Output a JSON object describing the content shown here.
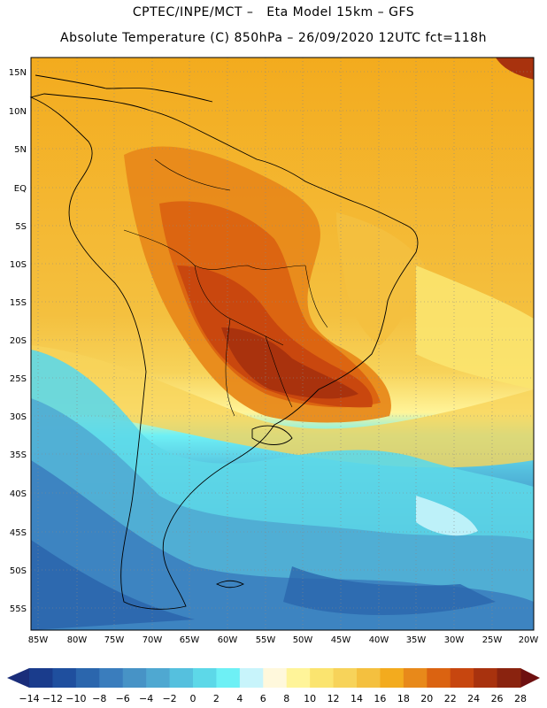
{
  "header": {
    "line1": "CPTEC/INPE/MCT –   Eta Model 15km – GFS",
    "line2": "Absolute Temperature (C) 850hPa – 26/09/2020 12UTC fct=118h"
  },
  "map": {
    "lat_labels": [
      "15N",
      "10N",
      "5N",
      "EQ",
      "5S",
      "10S",
      "15S",
      "20S",
      "25S",
      "30S",
      "35S",
      "40S",
      "45S",
      "50S",
      "55S"
    ],
    "lon_labels": [
      "85W",
      "80W",
      "75W",
      "70W",
      "65W",
      "60W",
      "55W",
      "50W",
      "45W",
      "40W",
      "35W",
      "30W",
      "25W",
      "20W"
    ]
  },
  "colorbar": {
    "labels": [
      "-14",
      "-12",
      "-10",
      "-8",
      "-6",
      "-4",
      "-2",
      "0",
      "2",
      "4",
      "6",
      "8",
      "10",
      "12",
      "14",
      "16",
      "18",
      "20",
      "22",
      "24",
      "26",
      "28"
    ],
    "colors": [
      "#1a3c8c",
      "#1f4f9e",
      "#2b66ad",
      "#3a7dbd",
      "#4793c6",
      "#4fa8d1",
      "#55c0de",
      "#5dd8e8",
      "#6ef0f5",
      "#c8f4fb",
      "#fff8dc",
      "#fff499",
      "#fbe46f",
      "#f7d35a",
      "#f4c03f",
      "#f3ab1e",
      "#e8891a",
      "#db6311",
      "#c7460f",
      "#a8320e",
      "#8a230f"
    ],
    "under_color": "#1a2d7a",
    "over_color": "#6e1010"
  }
}
